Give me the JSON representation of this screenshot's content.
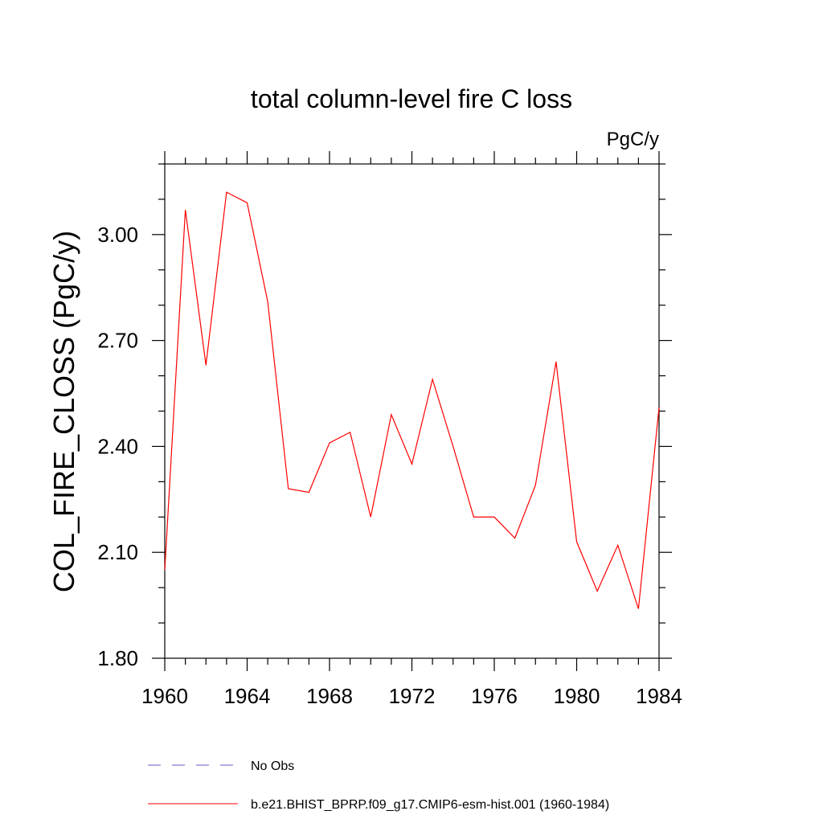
{
  "chart_data": {
    "type": "line",
    "title": "total column-level fire C loss",
    "units_label": "PgC/y",
    "ylabel": "COL_FIRE_CLOSS  (PgC/y)",
    "xlabel": "",
    "xlim": [
      1960,
      1984
    ],
    "ylim": [
      1.8,
      3.2
    ],
    "x_ticks": [
      1960,
      1964,
      1968,
      1972,
      1976,
      1980,
      1984
    ],
    "x_tick_labels": [
      "1960",
      "1964",
      "1968",
      "1972",
      "1976",
      "1980",
      "1984"
    ],
    "x_minor_ticks": [
      1961,
      1962,
      1963,
      1965,
      1966,
      1967,
      1969,
      1970,
      1971,
      1973,
      1974,
      1975,
      1977,
      1978,
      1979,
      1981,
      1982,
      1983
    ],
    "y_ticks": [
      1.8,
      2.1,
      2.4,
      2.7,
      3.0
    ],
    "y_tick_labels": [
      "1.80",
      "2.10",
      "2.40",
      "2.70",
      "3.00"
    ],
    "y_minor_ticks": [
      1.9,
      2.0,
      2.2,
      2.3,
      2.5,
      2.6,
      2.8,
      2.9,
      3.1,
      3.2
    ],
    "grid": false,
    "legend_position": "bottom",
    "series": [
      {
        "name": "No Obs",
        "color": "#6a5acd",
        "dash": "dashed",
        "x": [],
        "values": []
      },
      {
        "name": "b.e21.BHIST_BPRP.f09_g17.CMIP6-esm-hist.001 (1960-1984)",
        "color": "#ff0000",
        "dash": "solid",
        "x": [
          1960,
          1961,
          1962,
          1963,
          1964,
          1965,
          1966,
          1967,
          1968,
          1969,
          1970,
          1971,
          1972,
          1973,
          1974,
          1975,
          1976,
          1977,
          1978,
          1979,
          1980,
          1981,
          1982,
          1983,
          1984
        ],
        "values": [
          2.05,
          3.07,
          2.63,
          3.12,
          3.09,
          2.81,
          2.28,
          2.27,
          2.41,
          2.44,
          2.2,
          2.49,
          2.35,
          2.59,
          2.4,
          2.2,
          2.2,
          2.14,
          2.29,
          2.64,
          2.13,
          1.99,
          2.12,
          1.94,
          2.51
        ]
      }
    ]
  }
}
